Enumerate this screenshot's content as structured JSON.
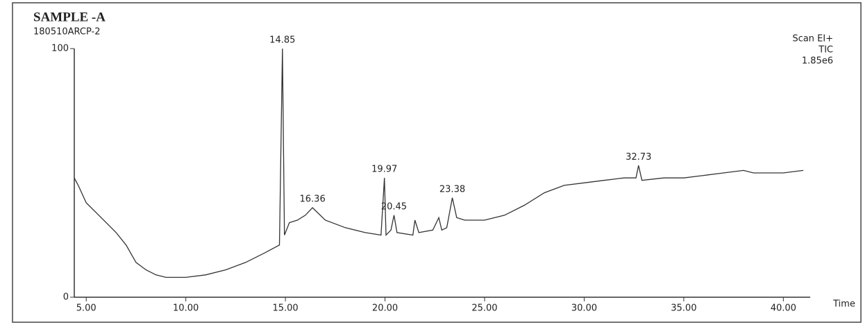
{
  "chart_data": {
    "type": "line",
    "title": "SAMPLE -A",
    "subtitle": "180510ARCP-2",
    "info": [
      "Scan EI+",
      "TIC",
      "1.85e6"
    ],
    "x_label": "Time",
    "color": "#333333",
    "x": [
      4.4,
      4.6,
      5.0,
      5.5,
      6.0,
      6.5,
      7.0,
      7.5,
      8.0,
      8.5,
      9.0,
      9.5,
      10.0,
      11.0,
      12.0,
      13.0,
      14.0,
      14.7,
      14.85,
      14.95,
      15.2,
      15.6,
      16.0,
      16.36,
      17.0,
      18.0,
      19.0,
      19.8,
      19.97,
      20.05,
      20.3,
      20.45,
      20.6,
      21.4,
      21.5,
      21.7,
      22.4,
      22.7,
      22.85,
      23.1,
      23.38,
      23.6,
      24.0,
      25.0,
      26.0,
      27.0,
      28.0,
      29.0,
      30.0,
      31.0,
      32.0,
      32.6,
      32.73,
      32.9,
      34.0,
      35.0,
      36.0,
      37.0,
      38.0,
      38.5,
      39.0,
      40.0,
      41.0
    ],
    "values": [
      48,
      45,
      38,
      34,
      30,
      26,
      21,
      14,
      11,
      9,
      8,
      8,
      8,
      9,
      11,
      14,
      18,
      21,
      100,
      25,
      30,
      31,
      33,
      36,
      31,
      28,
      26,
      25,
      48,
      25,
      27,
      33,
      26,
      25,
      31,
      26,
      27,
      32,
      27,
      28,
      40,
      32,
      31,
      31,
      33,
      37,
      42,
      45,
      46,
      47,
      48,
      48,
      53,
      47,
      48,
      48,
      49,
      50,
      51,
      50,
      50,
      50,
      51
    ],
    "annotations": [
      {
        "text": "14.85",
        "x": 14.85
      },
      {
        "text": "16.36",
        "x": 16.36
      },
      {
        "text": "19.97",
        "x": 19.97
      },
      {
        "text": "20.45",
        "x": 20.45
      },
      {
        "text": "23.38",
        "x": 23.38
      },
      {
        "text": "32.73",
        "x": 32.73
      }
    ],
    "xlim": [
      4.4,
      41.0
    ],
    "xticks": [
      {
        "value": 5,
        "label": "5.00"
      },
      {
        "value": 10,
        "label": "10.00"
      },
      {
        "value": 15,
        "label": "15.00"
      },
      {
        "value": 20,
        "label": "20.00"
      },
      {
        "value": 25,
        "label": "25.00"
      },
      {
        "value": 30,
        "label": "30.00"
      },
      {
        "value": 35,
        "label": "35.00"
      },
      {
        "value": 40,
        "label": "40.00"
      }
    ],
    "ylim": [
      0,
      100
    ],
    "yticks": [
      0,
      100
    ]
  }
}
